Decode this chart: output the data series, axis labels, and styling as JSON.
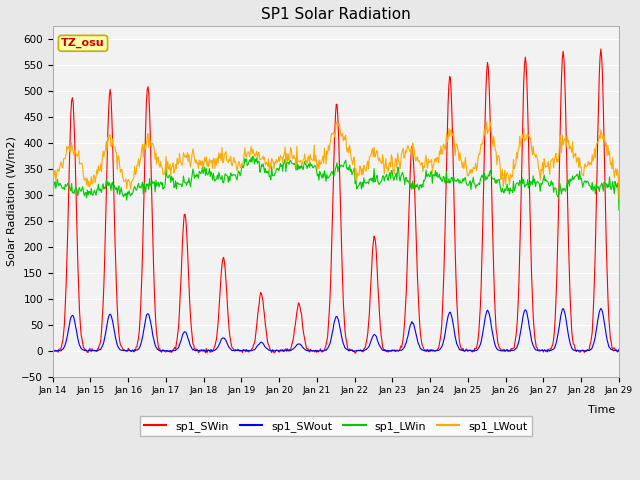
{
  "title": "SP1 Solar Radiation",
  "xlabel": "Time",
  "ylabel": "Solar Radiation (W/m2)",
  "ylim": [
    -50,
    625
  ],
  "x_labels": [
    "Jan 14",
    "Jan 15",
    "Jan 16",
    "Jan 17",
    "Jan 18",
    "Jan 19",
    "Jan 20",
    "Jan 21",
    "Jan 22",
    "Jan 23",
    "Jan 24",
    "Jan 25",
    "Jan 26",
    "Jan 27",
    "Jan 28",
    "Jan 29"
  ],
  "colors": {
    "sp1_SWin": "#ff0000",
    "sp1_SWout": "#0000ff",
    "sp1_LWin": "#00cc00",
    "sp1_LWout": "#ffaa00"
  },
  "bg_color": "#e8e8e8",
  "plot_bg": "#f2f2f2",
  "tz_label": "TZ_osu",
  "tz_bg": "#ffffaa",
  "tz_border": "#ccaa00",
  "tz_text_color": "#cc0000",
  "legend_labels": [
    "sp1_SWin",
    "sp1_SWout",
    "sp1_LWin",
    "sp1_LWout"
  ],
  "num_days": 15,
  "pts_per_day": 48,
  "random_seed": 7
}
